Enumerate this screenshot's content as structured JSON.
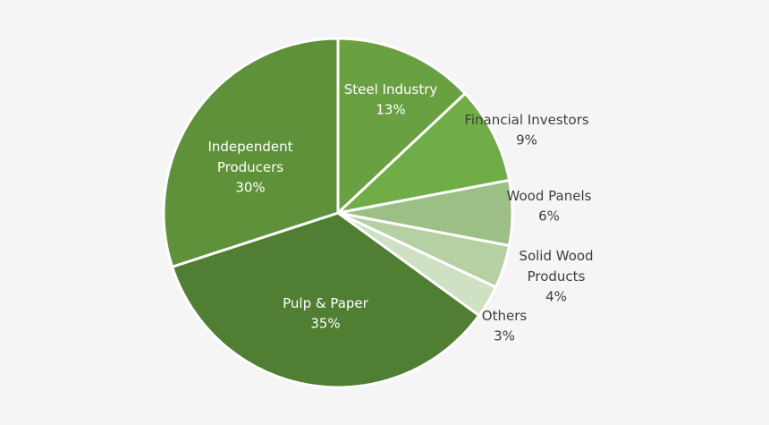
{
  "chart_data": {
    "type": "pie",
    "categories": [
      "Steel Industry",
      "Financial Investors",
      "Wood Panels",
      "Solid Wood Products",
      "Others",
      "Pulp & Paper",
      "Independent Producers"
    ],
    "values": [
      13,
      9,
      6,
      4,
      3,
      35,
      30
    ],
    "value_labels": [
      "13%",
      "9%",
      "6%",
      "4%",
      "3%",
      "35%",
      "30%"
    ],
    "colors": [
      "#69a042",
      "#70ad47",
      "#9bbf85",
      "#b5d0a2",
      "#cfe0c3",
      "#507e32",
      "#5e9139"
    ]
  }
}
